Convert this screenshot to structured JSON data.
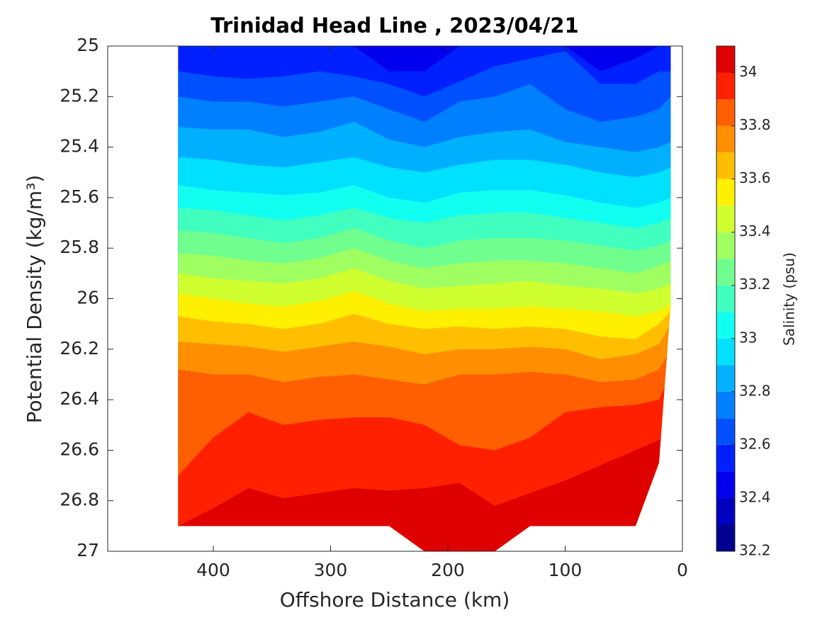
{
  "chart_data": {
    "type": "contourf",
    "title": "Trinidad Head Line , 2023/04/21",
    "x_label": "Offshore Distance (km)",
    "y_label": "Potential Density (kg/m³)",
    "colorbar_label": "Salinity (psu)",
    "xlim": [
      490,
      0
    ],
    "xticks": [
      400,
      300,
      200,
      100,
      0
    ],
    "ylim": [
      25,
      27
    ],
    "yticks": [
      25,
      25.2,
      25.4,
      25.6,
      25.8,
      26,
      26.2,
      26.4,
      26.6,
      26.8,
      27
    ],
    "levels": [
      32.2,
      32.3,
      32.4,
      32.5,
      32.6,
      32.7,
      32.8,
      32.9,
      33.0,
      33.1,
      33.2,
      33.3,
      33.4,
      33.5,
      33.6,
      33.7,
      33.8,
      33.9,
      34.0,
      34.1
    ],
    "colors": [
      "#00008f",
      "#0000bf",
      "#0000ef",
      "#0020ff",
      "#0050ff",
      "#0080ff",
      "#00b0ff",
      "#00e0ff",
      "#10fff0",
      "#40ffbf",
      "#70ff8f",
      "#a0ff60",
      "#d0ff30",
      "#ffef00",
      "#ffbf00",
      "#ff8f00",
      "#ff5f00",
      "#ff2000",
      "#df0000",
      "#af0000"
    ],
    "cticks": [
      32.2,
      32.4,
      32.6,
      32.8,
      33,
      33.2,
      33.4,
      33.6,
      33.8,
      34
    ],
    "x": [
      430,
      400,
      370,
      340,
      310,
      280,
      250,
      220,
      190,
      160,
      130,
      100,
      70,
      40,
      20,
      10
    ],
    "bottom": [
      26.9,
      26.9,
      26.9,
      26.9,
      26.9,
      26.9,
      26.9,
      27,
      27,
      27,
      26.9,
      26.9,
      26.9,
      26.9,
      26.65,
      26.02
    ],
    "contours": [
      {
        "level": 32.5,
        "y": [
          25,
          25,
          25,
          25,
          25,
          25,
          25.1,
          25.1,
          25,
          25,
          25,
          25,
          25.1,
          25.05,
          25,
          25
        ]
      },
      {
        "level": 32.6,
        "y": [
          25.1,
          25.12,
          25.13,
          25.12,
          25.1,
          25.12,
          25.15,
          25.2,
          25.14,
          25.08,
          25.05,
          25.02,
          25.15,
          25.15,
          25.1,
          25.1
        ]
      },
      {
        "level": 32.7,
        "y": [
          25.2,
          25.22,
          25.22,
          25.24,
          25.22,
          25.2,
          25.25,
          25.3,
          25.22,
          25.2,
          25.15,
          25.25,
          25.3,
          25.28,
          25.25,
          25.2
        ]
      },
      {
        "level": 32.8,
        "y": [
          25.32,
          25.33,
          25.33,
          25.36,
          25.34,
          25.3,
          25.37,
          25.4,
          25.36,
          25.34,
          25.33,
          25.38,
          25.4,
          25.42,
          25.4,
          25.38
        ]
      },
      {
        "level": 32.9,
        "y": [
          25.44,
          25.45,
          25.47,
          25.48,
          25.46,
          25.44,
          25.48,
          25.5,
          25.47,
          25.45,
          25.45,
          25.47,
          25.5,
          25.52,
          25.5,
          25.48
        ]
      },
      {
        "level": 33.0,
        "y": [
          25.55,
          25.57,
          25.58,
          25.59,
          25.58,
          25.55,
          25.6,
          25.62,
          25.58,
          25.57,
          25.57,
          25.59,
          25.62,
          25.64,
          25.62,
          25.6
        ]
      },
      {
        "level": 33.1,
        "y": [
          25.64,
          25.65,
          25.67,
          25.69,
          25.67,
          25.64,
          25.68,
          25.7,
          25.67,
          25.66,
          25.66,
          25.68,
          25.7,
          25.72,
          25.7,
          25.68
        ]
      },
      {
        "level": 33.2,
        "y": [
          25.73,
          25.74,
          25.76,
          25.78,
          25.76,
          25.72,
          25.77,
          25.8,
          25.77,
          25.76,
          25.76,
          25.77,
          25.79,
          25.81,
          25.79,
          25.77
        ]
      },
      {
        "level": 33.3,
        "y": [
          25.82,
          25.83,
          25.85,
          25.86,
          25.84,
          25.8,
          25.85,
          25.88,
          25.86,
          25.85,
          25.85,
          25.86,
          25.88,
          25.9,
          25.87,
          25.85
        ]
      },
      {
        "level": 33.4,
        "y": [
          25.9,
          25.92,
          25.93,
          25.94,
          25.92,
          25.88,
          25.93,
          25.96,
          25.95,
          25.94,
          25.93,
          25.95,
          25.96,
          25.98,
          25.96,
          25.94
        ]
      },
      {
        "level": 33.5,
        "y": [
          25.98,
          26.0,
          26.02,
          26.03,
          26.01,
          25.97,
          26.02,
          26.05,
          26.04,
          26.04,
          26.03,
          26.04,
          26.05,
          26.07,
          26.05,
          26.02
        ]
      },
      {
        "level": 33.6,
        "y": [
          26.07,
          26.09,
          26.1,
          26.12,
          26.1,
          26.06,
          26.1,
          26.12,
          26.11,
          26.12,
          26.11,
          26.12,
          26.15,
          26.16,
          26.1,
          26.05
        ]
      },
      {
        "level": 33.7,
        "y": [
          26.17,
          26.18,
          26.19,
          26.21,
          26.19,
          26.17,
          26.19,
          26.22,
          26.2,
          26.2,
          26.19,
          26.2,
          26.24,
          26.22,
          26.18,
          26.1
        ]
      },
      {
        "level": 33.8,
        "y": [
          26.28,
          26.3,
          26.3,
          26.33,
          26.31,
          26.3,
          26.32,
          26.34,
          26.3,
          26.3,
          26.29,
          26.3,
          26.33,
          26.32,
          26.28,
          26.2
        ]
      },
      {
        "level": 33.9,
        "y": [
          26.7,
          26.55,
          26.45,
          26.5,
          26.48,
          26.47,
          26.47,
          26.5,
          26.58,
          26.6,
          26.55,
          26.45,
          26.43,
          26.42,
          26.4,
          26.3
        ]
      },
      {
        "level": 34.0,
        "y": [
          26.9,
          26.83,
          26.75,
          26.79,
          26.77,
          26.75,
          26.76,
          26.75,
          26.73,
          26.82,
          26.77,
          26.72,
          26.66,
          26.6,
          26.56,
          26.5
        ]
      }
    ]
  }
}
